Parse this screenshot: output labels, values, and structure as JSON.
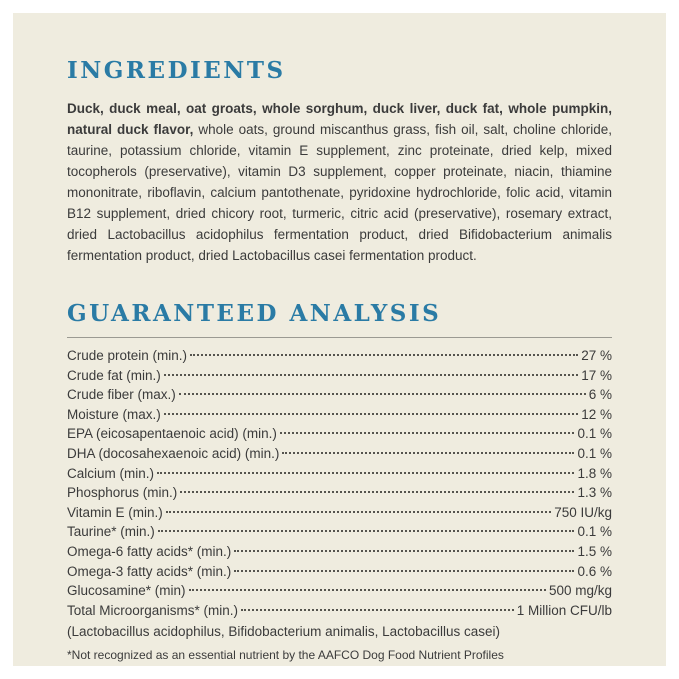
{
  "page": {
    "background_color": "#efecdf",
    "frame_color": "#ffffff",
    "heading_color": "#2a7ba5"
  },
  "ingredients": {
    "heading": "INGREDIENTS",
    "lead": "Duck, duck meal, oat groats, whole sorghum, duck liver, duck fat, whole pumpkin, natural duck flavor,",
    "body": " whole oats, ground miscanthus grass, fish oil, salt, choline chloride, taurine, potassium chloride, vitamin E supplement, zinc proteinate, dried kelp, mixed tocopherols (preservative), vitamin D3 supplement, copper proteinate, niacin, thiamine mononitrate, riboflavin, calcium pantothenate, pyridoxine hydrochloride, folic acid, vitamin B12 supplement, dried chicory root, turmeric, citric acid (preservative), rosemary extract, dried Lactobacillus acidophilus fermentation product, dried Bifidobacterium animalis fermentation product, dried Lactobacillus casei fermentation product."
  },
  "analysis": {
    "heading": "GUARANTEED ANALYSIS",
    "rows": [
      {
        "label": "Crude protein (min.)",
        "value": "27 %"
      },
      {
        "label": "Crude fat (min.)",
        "value": "17 %"
      },
      {
        "label": "Crude fiber (max.)",
        "value": "6 %"
      },
      {
        "label": "Moisture (max.)",
        "value": "12 %"
      },
      {
        "label": "EPA (eicosapentaenoic acid) (min.)",
        "value": "0.1 %"
      },
      {
        "label": "DHA (docosahexaenoic acid) (min.)",
        "value": "0.1 %"
      },
      {
        "label": "Calcium (min.)",
        "value": "1.8 %"
      },
      {
        "label": "Phosphorus (min.)",
        "value": "1.3 %"
      },
      {
        "label": "Vitamin E (min.)",
        "value": "750 IU/kg"
      },
      {
        "label": "Taurine* (min.)",
        "value": "0.1 %"
      },
      {
        "label": "Omega-6 fatty acids* (min.)",
        "value": "1.5 %"
      },
      {
        "label": "Omega-3 fatty acids* (min.)",
        "value": "0.6 %"
      },
      {
        "label": "Glucosamine* (min)",
        "value": "500 mg/kg"
      },
      {
        "label": "Total Microorganisms* (min.)",
        "value": "1 Million CFU/lb"
      }
    ],
    "organisms_note": "(Lactobacillus acidophilus, Bifidobacterium animalis, Lactobacillus casei)",
    "footnote": "*Not recognized as an essential nutrient by the AAFCO Dog Food Nutrient Profiles"
  }
}
